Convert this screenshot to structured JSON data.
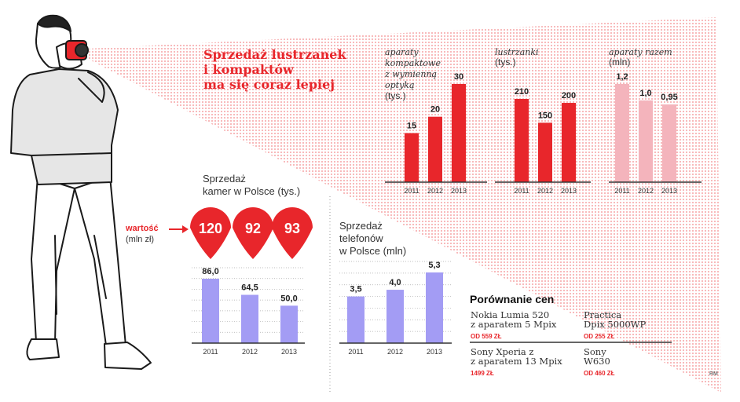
{
  "headline": [
    "Sprzedaż lustrzanek",
    "i kompaktów",
    "ma się coraz lepiej"
  ],
  "colors": {
    "red": "#e8262b",
    "pink": "#f4b4bc",
    "lavender": "#a39cf4",
    "axis": "#333333"
  },
  "chart_data": [
    {
      "type": "bar",
      "label_lines": [
        "aparaty",
        "kompaktowe",
        "z wymienną",
        "optyką",
        "(tys.)"
      ],
      "categories": [
        "2011",
        "2012",
        "2013"
      ],
      "values": [
        15,
        20,
        30
      ],
      "value_labels": [
        "15",
        "20",
        "30"
      ],
      "ylim": [
        0,
        30
      ],
      "color": "red"
    },
    {
      "type": "bar",
      "label_lines": [
        "lustrzanki",
        "(tys.)"
      ],
      "categories": [
        "2011",
        "2012",
        "2013"
      ],
      "values": [
        210,
        150,
        200
      ],
      "value_labels": [
        "210",
        "150",
        "200"
      ],
      "ylim": [
        0,
        210
      ],
      "color": "red"
    },
    {
      "type": "bar",
      "label_lines": [
        "aparaty razem",
        "(mln)"
      ],
      "categories": [
        "2011",
        "2012",
        "2013"
      ],
      "values": [
        1.2,
        1.0,
        0.95
      ],
      "value_labels": [
        "1,2",
        "1,0",
        "0,95"
      ],
      "ylim": [
        0,
        1.2
      ],
      "color": "pink"
    },
    {
      "type": "bar",
      "label_lines": [
        "Sprzedaż",
        "kamer w Polsce (tys.)"
      ],
      "categories": [
        "2011",
        "2012",
        "2013"
      ],
      "values": [
        86.0,
        64.5,
        50.0
      ],
      "value_labels": [
        "86,0",
        "64,5",
        "50,0"
      ],
      "ylim": [
        0,
        86
      ],
      "grid": true,
      "color": "lavender",
      "value_markers": {
        "label": "wartość",
        "unit": "(mln zł)",
        "values": [
          120,
          92,
          93
        ],
        "value_labels": [
          "120",
          "92",
          "93"
        ]
      }
    },
    {
      "type": "bar",
      "label_lines": [
        "Sprzedaż",
        "telefonów",
        "w Polsce (mln)"
      ],
      "categories": [
        "2011",
        "2012",
        "2013"
      ],
      "values": [
        3.5,
        4.0,
        5.3
      ],
      "value_labels": [
        "3,5",
        "4,0",
        "5,3"
      ],
      "ylim": [
        0,
        5.3
      ],
      "grid": true,
      "color": "lavender"
    }
  ],
  "price_comparison": {
    "title": "Porównanie cen",
    "items": [
      {
        "name_lines": [
          "Nokia Lumia 520",
          "z aparatem 5 Mpix"
        ],
        "price": "OD 559 ZŁ"
      },
      {
        "name_lines": [
          "Practica",
          "Dpix 5000WP"
        ],
        "price": "OD 255 ZŁ"
      },
      {
        "name_lines": [
          "Sony Xperia z",
          "z aparatem 13 Mpix"
        ],
        "price": "1499 ZŁ"
      },
      {
        "name_lines": [
          "Sony",
          "W630"
        ],
        "price": "OD 460 ZŁ"
      }
    ]
  },
  "credit": "RM"
}
